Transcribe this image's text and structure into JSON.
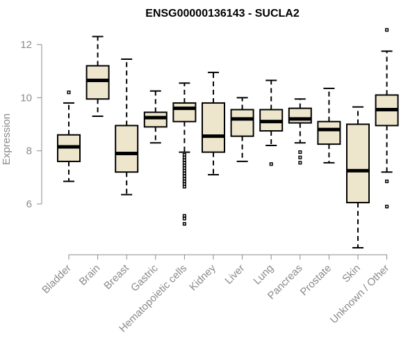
{
  "chart_data": {
    "type": "boxplot",
    "title": "ENSG00000136143 - SUCLA2",
    "xlabel": "",
    "ylabel": "Expression",
    "ylim": [
      4.0,
      12.9
    ],
    "yticks": [
      6,
      8,
      10,
      12
    ],
    "ytick_labels": [
      "6",
      "8",
      "10",
      "12"
    ],
    "colors": {
      "box_fill": "#ede6cd",
      "box_stroke": "#000000",
      "axis": "#8a8a8a"
    },
    "categories": [
      "Bladder",
      "Brain",
      "Breast",
      "Gastric",
      "Hematopoietic cells",
      "Kidney",
      "Liver",
      "Lung",
      "Pancreas",
      "Prostate",
      "Skin",
      "Unknown / Other"
    ],
    "boxes": [
      {
        "category": "Bladder",
        "whisker_low": 6.85,
        "q1": 7.6,
        "median": 8.15,
        "q3": 8.6,
        "whisker_high": 9.8,
        "outliers": [
          10.2
        ]
      },
      {
        "category": "Brain",
        "whisker_low": 9.3,
        "q1": 9.95,
        "median": 10.65,
        "q3": 11.2,
        "whisker_high": 12.3,
        "outliers": []
      },
      {
        "category": "Breast",
        "whisker_low": 6.35,
        "q1": 7.2,
        "median": 7.9,
        "q3": 8.95,
        "whisker_high": 11.45,
        "outliers": []
      },
      {
        "category": "Gastric",
        "whisker_low": 8.3,
        "q1": 8.9,
        "median": 9.25,
        "q3": 9.45,
        "whisker_high": 10.25,
        "outliers": []
      },
      {
        "category": "Hematopoietic cells",
        "whisker_low": 7.95,
        "q1": 9.1,
        "median": 9.6,
        "q3": 9.8,
        "whisker_high": 10.55,
        "outliers": [
          7.85,
          7.75,
          7.65,
          7.55,
          7.45,
          7.35,
          7.25,
          7.15,
          7.05,
          6.95,
          6.85,
          6.75,
          6.65,
          5.55,
          5.45,
          5.25
        ]
      },
      {
        "category": "Kidney",
        "whisker_low": 7.1,
        "q1": 7.95,
        "median": 8.55,
        "q3": 9.8,
        "whisker_high": 10.95,
        "outliers": []
      },
      {
        "category": "Liver",
        "whisker_low": 7.6,
        "q1": 8.55,
        "median": 9.2,
        "q3": 9.55,
        "whisker_high": 10.0,
        "outliers": []
      },
      {
        "category": "Lung",
        "whisker_low": 8.2,
        "q1": 8.75,
        "median": 9.1,
        "q3": 9.55,
        "whisker_high": 10.65,
        "outliers": [
          7.5
        ]
      },
      {
        "category": "Pancreas",
        "whisker_low": 8.3,
        "q1": 9.05,
        "median": 9.2,
        "q3": 9.6,
        "whisker_high": 9.95,
        "outliers": [
          7.95,
          7.75,
          7.55
        ]
      },
      {
        "category": "Prostate",
        "whisker_low": 7.55,
        "q1": 8.25,
        "median": 8.8,
        "q3": 9.1,
        "whisker_high": 10.35,
        "outliers": []
      },
      {
        "category": "Skin",
        "whisker_low": 4.35,
        "q1": 6.05,
        "median": 7.25,
        "q3": 9.0,
        "whisker_high": 9.65,
        "outliers": []
      },
      {
        "category": "Unknown / Other",
        "whisker_low": 7.2,
        "q1": 8.95,
        "median": 9.55,
        "q3": 10.1,
        "whisker_high": 11.75,
        "outliers": [
          12.55,
          6.85,
          5.9
        ]
      }
    ]
  }
}
